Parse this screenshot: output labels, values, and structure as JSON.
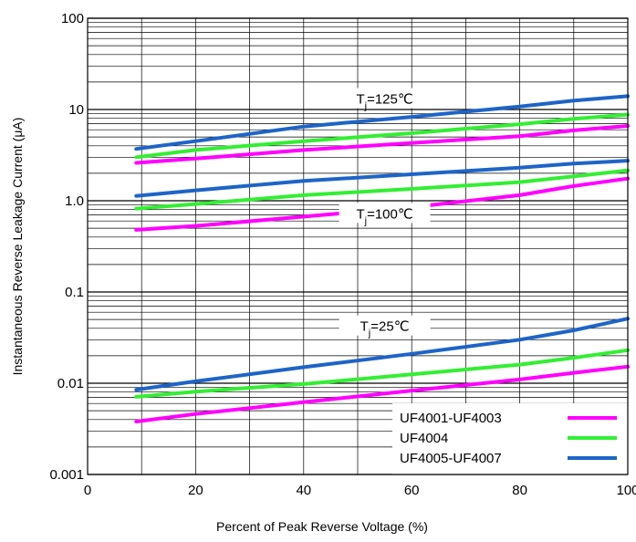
{
  "chart_data": {
    "type": "line",
    "xlabel": "Percent of Peak Reverse Voltage (%)",
    "ylabel": "Instantaneous Reverse Leakage Current (μA)",
    "xlim": [
      0,
      100
    ],
    "ylim": [
      0.001,
      100
    ],
    "yscale": "log",
    "grid": true,
    "x_ticks": [
      {
        "value": 0,
        "label": "0"
      },
      {
        "value": 20,
        "label": "20"
      },
      {
        "value": 40,
        "label": "40"
      },
      {
        "value": 60,
        "label": "60"
      },
      {
        "value": 80,
        "label": "80"
      },
      {
        "value": 100,
        "label": "100"
      }
    ],
    "y_ticks": [
      {
        "value": 0.001,
        "label": "0.001"
      },
      {
        "value": 0.01,
        "label": "0.01"
      },
      {
        "value": 0.1,
        "label": "0.1"
      },
      {
        "value": 1,
        "label": "1.0"
      },
      {
        "value": 10,
        "label": "10"
      },
      {
        "value": 100,
        "label": "100"
      }
    ],
    "legend": {
      "placement": "bottom-right",
      "entries": [
        {
          "label": "UF4001-UF4003",
          "color": "#ff00ff"
        },
        {
          "label": "UF4004",
          "color": "#33ee33"
        },
        {
          "label": "UF4005-UF4007",
          "color": "#1e64c8"
        }
      ]
    },
    "annotations": [
      {
        "text": "Tj=125℃",
        "main": "T",
        "sub": "j",
        "rest": "=125℃",
        "x": 55,
        "y": 13
      },
      {
        "text": "Tj=100℃",
        "main": "T",
        "sub": "j",
        "rest": "=100℃",
        "x": 55,
        "y": 0.72
      },
      {
        "text": "Tj=25℃",
        "main": "T",
        "sub": "j",
        "rest": "=25℃",
        "x": 55,
        "y": 0.042
      }
    ],
    "series": [
      {
        "group": "Tj=125℃",
        "color": "#1e64c8",
        "x": [
          9,
          20,
          40,
          60,
          80,
          90,
          100
        ],
        "y": [
          3.7,
          4.5,
          6.5,
          8.3,
          10.8,
          12.5,
          14
        ]
      },
      {
        "group": "Tj=125℃",
        "color": "#33ee33",
        "x": [
          9,
          20,
          40,
          60,
          80,
          90,
          100
        ],
        "y": [
          3.0,
          3.6,
          4.5,
          5.5,
          6.9,
          7.9,
          8.8
        ]
      },
      {
        "group": "Tj=125℃",
        "color": "#ff00ff",
        "x": [
          9,
          20,
          40,
          60,
          80,
          90,
          100
        ],
        "y": [
          2.6,
          2.9,
          3.6,
          4.3,
          5.1,
          5.9,
          6.6
        ]
      },
      {
        "group": "Tj=100℃",
        "color": "#1e64c8",
        "x": [
          9,
          20,
          40,
          60,
          80,
          90,
          100
        ],
        "y": [
          1.13,
          1.3,
          1.65,
          1.95,
          2.3,
          2.55,
          2.75
        ]
      },
      {
        "group": "Tj=100℃",
        "color": "#33ee33",
        "x": [
          9,
          20,
          40,
          60,
          80,
          90,
          100
        ],
        "y": [
          0.82,
          0.92,
          1.15,
          1.35,
          1.6,
          1.85,
          2.15
        ]
      },
      {
        "group": "Tj=100℃",
        "color": "#ff00ff",
        "x": [
          9,
          20,
          40,
          60,
          80,
          90,
          100
        ],
        "y": [
          0.48,
          0.53,
          0.67,
          0.85,
          1.15,
          1.45,
          1.75
        ]
      },
      {
        "group": "Tj=25℃",
        "color": "#1e64c8",
        "x": [
          9,
          20,
          40,
          60,
          80,
          90,
          100
        ],
        "y": [
          0.0085,
          0.0105,
          0.015,
          0.021,
          0.03,
          0.038,
          0.051
        ]
      },
      {
        "group": "Tj=25℃",
        "color": "#33ee33",
        "x": [
          9,
          20,
          40,
          60,
          80,
          90,
          100
        ],
        "y": [
          0.0071,
          0.0081,
          0.0098,
          0.0125,
          0.016,
          0.019,
          0.023
        ]
      },
      {
        "group": "Tj=25℃",
        "color": "#ff00ff",
        "x": [
          9,
          20,
          40,
          60,
          80,
          90,
          100
        ],
        "y": [
          0.0038,
          0.0046,
          0.0062,
          0.0083,
          0.011,
          0.013,
          0.0152
        ]
      }
    ]
  }
}
